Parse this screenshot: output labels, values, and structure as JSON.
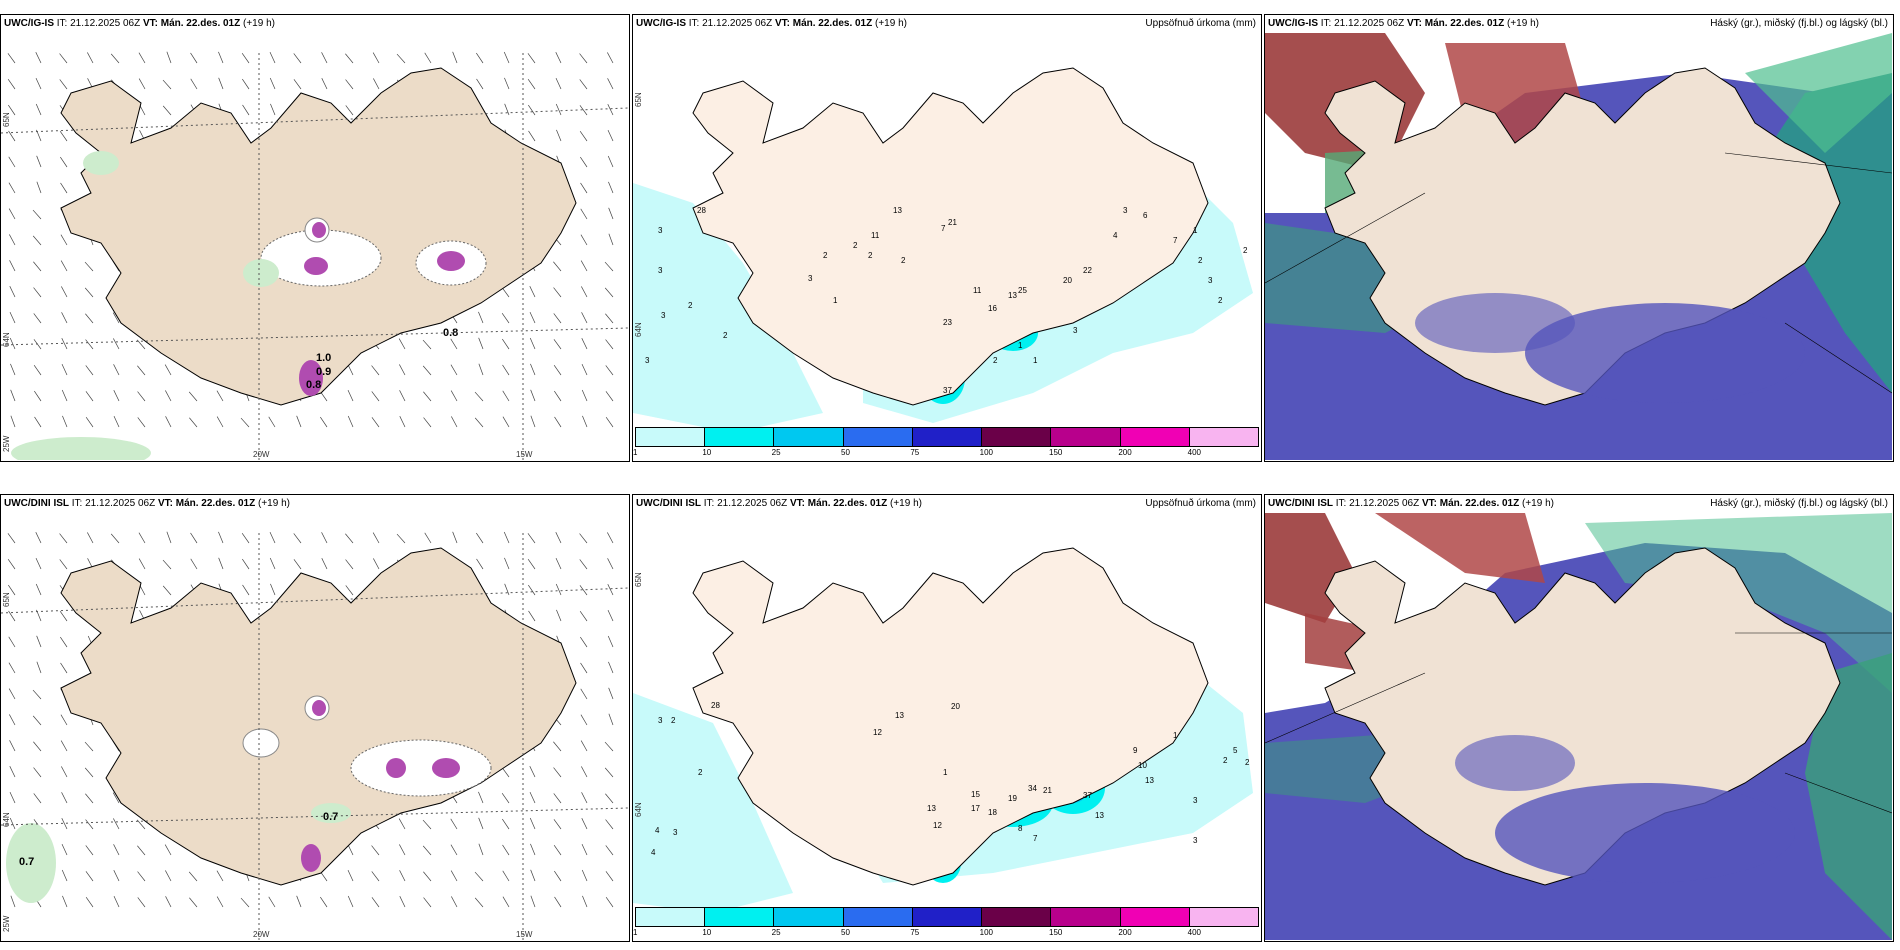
{
  "rows": [
    {
      "model": "UWC/IG-IS",
      "it_label": "IT:",
      "it_value": "21.12.2025 06Z",
      "vt_label": "VT:",
      "vt_value": "Mán. 22.des. 01Z",
      "lead": "(+19 h)"
    },
    {
      "model": "UWC/DINI ISL",
      "it_label": "IT:",
      "it_value": "21.12.2025 06Z",
      "vt_label": "VT:",
      "vt_value": "Mán. 22.des. 01Z",
      "lead": "(+19 h)"
    }
  ],
  "precip_title": "Uppsöfnuð úrkoma (mm)",
  "cloud_title": "Háský (gr.), miðský (fj.bl.) og lágský (bl.)",
  "colorbar": {
    "ticks": [
      "1",
      "10",
      "25",
      "50",
      "75",
      "100",
      "150",
      "200",
      "400"
    ],
    "colors": [
      "#c8fafa",
      "#00f0f0",
      "#00c8f0",
      "#2a6cf0",
      "#2020c8",
      "#6a0048",
      "#b8008c",
      "#f000b4",
      "#f8b4f0"
    ]
  },
  "axes": {
    "lat_top": "65N",
    "lat_mid": "64N",
    "lon_left": "25W",
    "lon_mid": "20W",
    "lon_right": "15W"
  },
  "wind_labels_top": [
    "1.0",
    "0.9",
    "0.8",
    "0.8"
  ],
  "wind_labels_bottom": [
    "0.7",
    "0.7"
  ],
  "precip_labels_top": [
    "3",
    "3",
    "3",
    "2",
    "2",
    "3",
    "2",
    "2",
    "28",
    "11",
    "13",
    "21",
    "7",
    "2",
    "2",
    "3",
    "1",
    "11",
    "16",
    "23",
    "13",
    "25",
    "20",
    "22",
    "3",
    "1",
    "1",
    "37",
    "2",
    "4",
    "3",
    "6",
    "7",
    "1",
    "2",
    "3",
    "2",
    "2"
  ],
  "precip_labels_bottom": [
    "3",
    "2",
    "2",
    "4",
    "3",
    "4",
    "28",
    "13",
    "12",
    "20",
    "1",
    "15",
    "17",
    "18",
    "19",
    "34",
    "21",
    "12",
    "13",
    "7",
    "8",
    "37",
    "13",
    "9",
    "10",
    "13",
    "3",
    "3",
    "2",
    "5",
    "1",
    "2"
  ],
  "icons": {
    "wind_barb": "wind-barb-icon",
    "contour": "contour-line-icon"
  }
}
